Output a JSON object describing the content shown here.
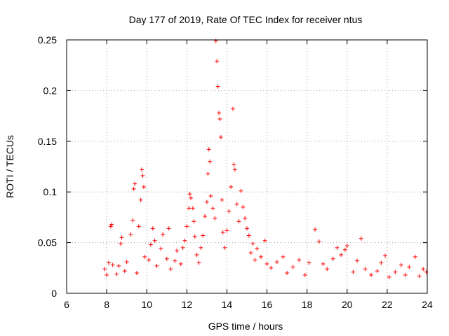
{
  "chart_data": {
    "type": "scatter",
    "title": "Day 177 of 2019, Rate Of TEC Index for receiver ntus",
    "xlabel": "GPS time / hours",
    "ylabel": "ROTI / TECUs",
    "xlim": [
      6,
      24
    ],
    "ylim": [
      0,
      0.25
    ],
    "x_ticks": [
      6,
      8,
      10,
      12,
      14,
      16,
      18,
      20,
      22,
      24
    ],
    "x_tick_labels": [
      "6",
      "8",
      "10",
      "12",
      "14",
      "16",
      "18",
      "20",
      "22",
      "24"
    ],
    "y_ticks": [
      0,
      0.05,
      0.1,
      0.15,
      0.2,
      0.25
    ],
    "y_tick_labels": [
      "0",
      "0.05",
      "0.1",
      "0.15",
      "0.2",
      "0.25"
    ],
    "grid": true,
    "marker": "+",
    "colors": {
      "points": "#ff0000",
      "grid": "#a0a0a0",
      "axes": "#000000"
    },
    "series": [
      {
        "name": "ROTI",
        "points": [
          [
            7.9,
            0.024
          ],
          [
            8.0,
            0.018
          ],
          [
            8.1,
            0.03
          ],
          [
            8.2,
            0.066
          ],
          [
            8.25,
            0.068
          ],
          [
            8.3,
            0.028
          ],
          [
            8.5,
            0.019
          ],
          [
            8.6,
            0.027
          ],
          [
            8.7,
            0.049
          ],
          [
            8.75,
            0.055
          ],
          [
            8.9,
            0.022
          ],
          [
            9.0,
            0.031
          ],
          [
            9.2,
            0.058
          ],
          [
            9.3,
            0.072
          ],
          [
            9.35,
            0.103
          ],
          [
            9.4,
            0.108
          ],
          [
            9.5,
            0.02
          ],
          [
            9.6,
            0.066
          ],
          [
            9.7,
            0.092
          ],
          [
            9.75,
            0.122
          ],
          [
            9.8,
            0.116
          ],
          [
            9.85,
            0.105
          ],
          [
            9.9,
            0.036
          ],
          [
            10.1,
            0.033
          ],
          [
            10.2,
            0.048
          ],
          [
            10.3,
            0.064
          ],
          [
            10.4,
            0.052
          ],
          [
            10.5,
            0.027
          ],
          [
            10.7,
            0.044
          ],
          [
            10.8,
            0.058
          ],
          [
            11.0,
            0.034
          ],
          [
            11.1,
            0.064
          ],
          [
            11.2,
            0.024
          ],
          [
            11.4,
            0.032
          ],
          [
            11.5,
            0.042
          ],
          [
            11.7,
            0.029
          ],
          [
            11.8,
            0.045
          ],
          [
            11.9,
            0.052
          ],
          [
            12.0,
            0.066
          ],
          [
            12.1,
            0.084
          ],
          [
            12.15,
            0.098
          ],
          [
            12.2,
            0.094
          ],
          [
            12.3,
            0.084
          ],
          [
            12.35,
            0.071
          ],
          [
            12.4,
            0.056
          ],
          [
            12.5,
            0.038
          ],
          [
            12.6,
            0.03
          ],
          [
            12.7,
            0.045
          ],
          [
            12.8,
            0.057
          ],
          [
            12.9,
            0.076
          ],
          [
            13.0,
            0.09
          ],
          [
            13.05,
            0.118
          ],
          [
            13.1,
            0.142
          ],
          [
            13.15,
            0.13
          ],
          [
            13.2,
            0.096
          ],
          [
            13.3,
            0.084
          ],
          [
            13.4,
            0.074
          ],
          [
            13.45,
            0.249
          ],
          [
            13.5,
            0.229
          ],
          [
            13.55,
            0.204
          ],
          [
            13.6,
            0.178
          ],
          [
            13.65,
            0.172
          ],
          [
            13.7,
            0.154
          ],
          [
            13.75,
            0.092
          ],
          [
            13.8,
            0.06
          ],
          [
            13.9,
            0.045
          ],
          [
            14.0,
            0.062
          ],
          [
            14.1,
            0.081
          ],
          [
            14.2,
            0.105
          ],
          [
            14.3,
            0.182
          ],
          [
            14.35,
            0.127
          ],
          [
            14.4,
            0.122
          ],
          [
            14.5,
            0.088
          ],
          [
            14.6,
            0.071
          ],
          [
            14.7,
            0.101
          ],
          [
            14.8,
            0.085
          ],
          [
            14.9,
            0.074
          ],
          [
            15.0,
            0.064
          ],
          [
            15.1,
            0.057
          ],
          [
            15.2,
            0.04
          ],
          [
            15.3,
            0.049
          ],
          [
            15.4,
            0.033
          ],
          [
            15.5,
            0.044
          ],
          [
            15.7,
            0.036
          ],
          [
            15.9,
            0.052
          ],
          [
            16.0,
            0.029
          ],
          [
            16.2,
            0.025
          ],
          [
            16.5,
            0.031
          ],
          [
            16.8,
            0.036
          ],
          [
            17.0,
            0.02
          ],
          [
            17.3,
            0.026
          ],
          [
            17.6,
            0.033
          ],
          [
            17.9,
            0.018
          ],
          [
            18.1,
            0.03
          ],
          [
            18.4,
            0.063
          ],
          [
            18.6,
            0.051
          ],
          [
            18.8,
            0.029
          ],
          [
            19.0,
            0.024
          ],
          [
            19.3,
            0.034
          ],
          [
            19.5,
            0.045
          ],
          [
            19.7,
            0.038
          ],
          [
            19.9,
            0.043
          ],
          [
            20.0,
            0.047
          ],
          [
            20.3,
            0.021
          ],
          [
            20.5,
            0.032
          ],
          [
            20.7,
            0.054
          ],
          [
            20.9,
            0.024
          ],
          [
            21.2,
            0.018
          ],
          [
            21.5,
            0.022
          ],
          [
            21.7,
            0.03
          ],
          [
            21.9,
            0.037
          ],
          [
            22.1,
            0.016
          ],
          [
            22.4,
            0.021
          ],
          [
            22.7,
            0.028
          ],
          [
            22.9,
            0.018
          ],
          [
            23.1,
            0.026
          ],
          [
            23.4,
            0.036
          ],
          [
            23.6,
            0.017
          ],
          [
            23.8,
            0.024
          ],
          [
            23.95,
            0.021
          ]
        ]
      }
    ]
  }
}
